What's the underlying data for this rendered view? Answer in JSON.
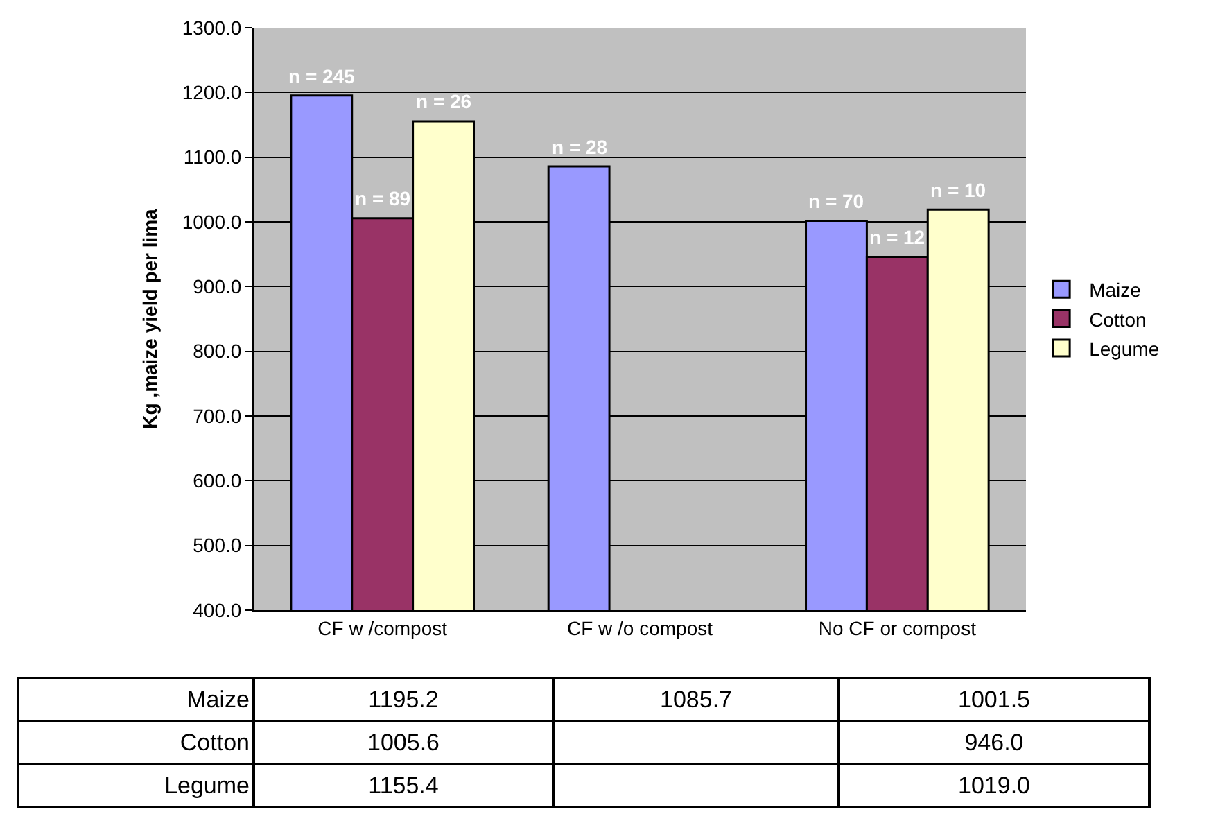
{
  "chart_data": {
    "type": "bar",
    "ylabel": "Kg ,maize yield per lima",
    "categories": [
      "CF w /compost",
      "CF w /o compost",
      "No CF or compost"
    ],
    "series": [
      {
        "name": "Maize",
        "color": "#9999ff",
        "values": [
          1195.2,
          1085.7,
          1001.5
        ],
        "value_labels": [
          "1195.2",
          "1085.7",
          "1001.5"
        ]
      },
      {
        "name": "Cotton",
        "color": "#993366",
        "values": [
          1005.6,
          null,
          946.0
        ],
        "value_labels": [
          "1005.6",
          null,
          "946.0"
        ]
      },
      {
        "name": "Legume",
        "color": "#ffffcc",
        "values": [
          1155.4,
          null,
          1019.0
        ],
        "value_labels": [
          "1155.4",
          null,
          "1019.0"
        ]
      }
    ],
    "ylim": [
      400,
      1300
    ],
    "yticks": [
      {
        "value": 400,
        "label": "400.0"
      },
      {
        "value": 500,
        "label": "500.0"
      },
      {
        "value": 600,
        "label": "600.0"
      },
      {
        "value": 700,
        "label": "700.0"
      },
      {
        "value": 800,
        "label": "800.0"
      },
      {
        "value": 900,
        "label": "900.0"
      },
      {
        "value": 1000,
        "label": "1000.0"
      },
      {
        "value": 1100,
        "label": "1100.0"
      },
      {
        "value": 1200,
        "label": "1200.0"
      },
      {
        "value": 1300,
        "label": "1300.0"
      }
    ],
    "annotations": [
      "n = 245",
      "n = 89",
      "n = 26",
      "n = 28",
      "n = 70",
      "n = 12",
      "n = 10"
    ],
    "grid": "y",
    "legend": "right"
  }
}
